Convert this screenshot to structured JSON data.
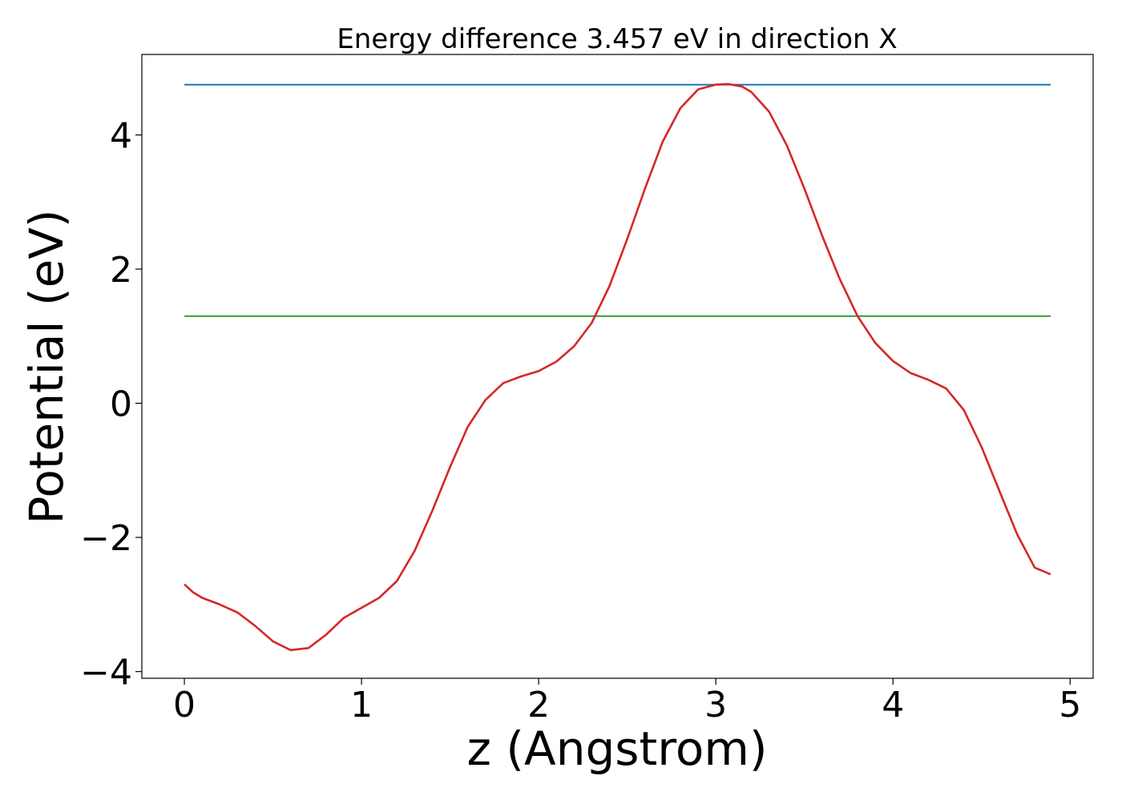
{
  "chart_data": {
    "type": "line",
    "title": "Energy difference 3.457 eV in direction X",
    "xlabel": "z (Angstrom)",
    "ylabel": "Potential (eV)",
    "xlim": [
      -0.24,
      5.13
    ],
    "ylim": [
      -4.1,
      5.2
    ],
    "xticks": [
      0,
      1,
      2,
      3,
      4,
      5
    ],
    "yticks": [
      -4,
      -2,
      0,
      2,
      4
    ],
    "xtick_labels": [
      "0",
      "1",
      "2",
      "3",
      "4",
      "5"
    ],
    "ytick_labels": [
      "−4",
      "−2",
      "0",
      "2",
      "4"
    ],
    "grid": false,
    "legend": "none",
    "series": [
      {
        "color": "#1f77b4",
        "x": [
          0,
          4.89
        ],
        "y": [
          4.75,
          4.75
        ]
      },
      {
        "color": "#2ca02c",
        "x": [
          0,
          4.89
        ],
        "y": [
          1.3,
          1.3
        ]
      },
      {
        "color": "#d62728",
        "x": [
          0,
          0.05,
          0.1,
          0.2,
          0.3,
          0.4,
          0.5,
          0.6,
          0.7,
          0.8,
          0.9,
          1.0,
          1.1,
          1.2,
          1.3,
          1.4,
          1.5,
          1.6,
          1.7,
          1.8,
          1.9,
          2.0,
          2.1,
          2.2,
          2.3,
          2.4,
          2.5,
          2.6,
          2.7,
          2.8,
          2.9,
          3.0,
          3.07,
          3.15,
          3.2,
          3.3,
          3.4,
          3.5,
          3.6,
          3.7,
          3.8,
          3.9,
          4.0,
          4.1,
          4.2,
          4.3,
          4.4,
          4.5,
          4.6,
          4.7,
          4.8,
          4.89
        ],
        "y": [
          -2.7,
          -2.82,
          -2.9,
          -3.0,
          -3.12,
          -3.32,
          -3.55,
          -3.68,
          -3.65,
          -3.45,
          -3.2,
          -3.05,
          -2.9,
          -2.65,
          -2.2,
          -1.6,
          -0.95,
          -0.35,
          0.05,
          0.3,
          0.4,
          0.48,
          0.62,
          0.85,
          1.2,
          1.75,
          2.45,
          3.2,
          3.9,
          4.4,
          4.68,
          4.75,
          4.76,
          4.72,
          4.64,
          4.35,
          3.85,
          3.2,
          2.5,
          1.85,
          1.3,
          0.9,
          0.63,
          0.45,
          0.35,
          0.22,
          -0.1,
          -0.65,
          -1.3,
          -1.95,
          -2.45,
          -2.55
        ]
      }
    ]
  }
}
